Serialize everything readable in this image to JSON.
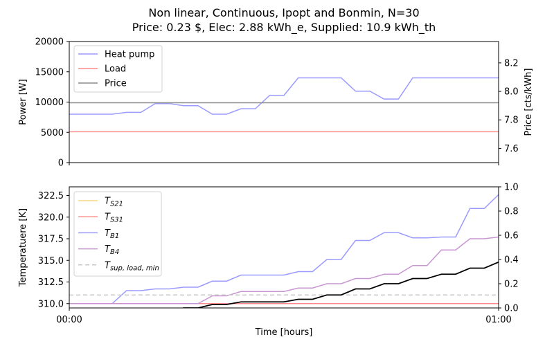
{
  "title_line1": "Non linear, Continuous, Ipopt and Bonmin, N=30",
  "title_line2": "Price: 0.23 $, Elec: 2.88 kWh_e, Supplied: 10.9 kWh_th",
  "colors": {
    "heat_pump": "#9a9aff",
    "load": "#ff8c8c",
    "price": "#8c8c8c",
    "t_s21": "#f5d78a",
    "t_s31": "#ff8c8c",
    "t_b1": "#9a9aff",
    "t_b4": "#c896d2",
    "t_sup_load_min": "#c8c8c8",
    "t_s21_line": "#ff8c3c",
    "extra_black": "#000000"
  },
  "chart_data": [
    {
      "type": "line",
      "ylabel": "Power [W]",
      "y2label": "Price [cts/kWh]",
      "xlabel": "",
      "x": [
        0,
        0.0333,
        0.0667,
        0.1,
        0.1333,
        0.1667,
        0.2,
        0.2333,
        0.2667,
        0.3,
        0.3333,
        0.3667,
        0.4,
        0.4333,
        0.4667,
        0.5,
        0.5333,
        0.5667,
        0.6,
        0.6333,
        0.6667,
        0.7,
        0.7333,
        0.7667,
        0.8,
        0.8333,
        0.8667,
        0.9,
        0.9333,
        0.9667,
        1.0
      ],
      "ylim": [
        0,
        20000
      ],
      "y2lim": [
        7.5,
        8.35
      ],
      "yticks": [
        0,
        5000,
        10000,
        15000,
        20000
      ],
      "y2ticks": [
        7.6,
        7.8,
        8.0,
        8.2
      ],
      "grid": false,
      "legend_position": "upper-left",
      "series": [
        {
          "name": "Heat pump",
          "axis": "left",
          "color_key": "heat_pump",
          "values": [
            8000,
            8000,
            8000,
            8000,
            8300,
            8300,
            9750,
            9750,
            9400,
            9400,
            8000,
            8000,
            8900,
            8900,
            11100,
            11100,
            14000,
            14000,
            14000,
            14000,
            11800,
            11800,
            10500,
            10500,
            14000,
            14000,
            14000,
            14000,
            14000,
            14000,
            14000
          ]
        },
        {
          "name": "Load",
          "axis": "left",
          "color_key": "load",
          "values": [
            5100,
            5100,
            5100,
            5100,
            5100,
            5100,
            5100,
            5100,
            5100,
            5100,
            5100,
            5100,
            5100,
            5100,
            5100,
            5100,
            5100,
            5100,
            5100,
            5100,
            5100,
            5100,
            5100,
            5100,
            5100,
            5100,
            5100,
            5100,
            5100,
            5100,
            5100
          ]
        },
        {
          "name": "Price",
          "axis": "right",
          "color_key": "price",
          "values": [
            7.92,
            7.92,
            7.92,
            7.92,
            7.92,
            7.92,
            7.92,
            7.92,
            7.92,
            7.92,
            7.92,
            7.92,
            7.92,
            7.92,
            7.92,
            7.92,
            7.92,
            7.92,
            7.92,
            7.92,
            7.92,
            7.92,
            7.92,
            7.92,
            7.92,
            7.92,
            7.92,
            7.92,
            7.92,
            7.92,
            7.92
          ]
        }
      ]
    },
    {
      "type": "line",
      "ylabel": "Temperatuere [K]",
      "xlabel": "Time [hours]",
      "x": [
        0,
        0.0333,
        0.0667,
        0.1,
        0.1333,
        0.1667,
        0.2,
        0.2333,
        0.2667,
        0.3,
        0.3333,
        0.3667,
        0.4,
        0.4333,
        0.4667,
        0.5,
        0.5333,
        0.5667,
        0.6,
        0.6333,
        0.6667,
        0.7,
        0.7333,
        0.7667,
        0.8,
        0.8333,
        0.8667,
        0.9,
        0.9333,
        0.9667,
        1.0
      ],
      "ylim": [
        309.5,
        323.5
      ],
      "y2lim": [
        0,
        1
      ],
      "yticks": [
        310.0,
        312.5,
        315.0,
        317.5,
        320.0,
        322.5
      ],
      "ytick_labels": [
        "310.0",
        "312.5",
        "315.0",
        "317.5",
        "320.0",
        "322.5"
      ],
      "y2ticks": [
        0.0,
        0.2,
        0.4,
        0.6,
        0.8,
        1.0
      ],
      "xticks": [
        0,
        1
      ],
      "xtick_labels": [
        "00:00",
        "01:00"
      ],
      "grid": false,
      "legend_position": "upper-left",
      "legend_labels": [
        {
          "base": "T",
          "sub": "S21"
        },
        {
          "base": "T",
          "sub": "S31"
        },
        {
          "base": "T",
          "sub": "B1"
        },
        {
          "base": "T",
          "sub": "B4"
        },
        {
          "base": "T",
          "sub": "sup, load, min"
        }
      ],
      "series": [
        {
          "name": "T_S21",
          "color_key": "t_s21_line",
          "legend_color_key": "t_s21",
          "values": [
            310.0,
            310.0,
            310.0,
            310.0,
            310.0,
            310.0,
            310.0,
            310.0,
            310.0,
            310.0,
            310.0,
            310.0,
            310.0,
            310.0,
            310.0,
            310.0,
            310.0,
            310.0,
            310.0,
            310.0,
            310.0,
            310.0,
            310.0,
            310.0,
            310.0,
            310.0,
            310.0,
            310.0,
            310.0,
            310.0,
            310.0
          ]
        },
        {
          "name": "T_S31",
          "color_key": "t_s31",
          "values": [
            310.0,
            310.0,
            310.0,
            310.0,
            310.0,
            310.0,
            310.0,
            310.0,
            310.0,
            310.0,
            310.0,
            310.0,
            310.0,
            310.0,
            310.0,
            310.0,
            310.0,
            310.0,
            310.0,
            310.0,
            310.0,
            310.0,
            310.0,
            310.0,
            310.0,
            310.0,
            310.0,
            310.0,
            310.0,
            310.0,
            310.0
          ]
        },
        {
          "name": "T_B1",
          "color_key": "t_b1",
          "values": [
            310.0,
            310.0,
            310.0,
            310.0,
            311.5,
            311.5,
            311.7,
            311.7,
            311.9,
            311.9,
            312.6,
            312.6,
            313.3,
            313.3,
            313.3,
            313.3,
            313.7,
            313.7,
            315.1,
            315.1,
            317.3,
            317.3,
            318.2,
            318.2,
            317.6,
            317.6,
            317.7,
            317.7,
            321.0,
            321.0,
            322.6
          ]
        },
        {
          "name": "T_B4",
          "color_key": "t_b4",
          "values": [
            310.0,
            310.0,
            310.0,
            310.0,
            310.0,
            310.0,
            310.0,
            310.0,
            310.0,
            310.0,
            310.9,
            310.9,
            311.4,
            311.4,
            311.4,
            311.4,
            311.8,
            311.8,
            312.3,
            312.3,
            312.9,
            312.9,
            313.4,
            313.4,
            314.4,
            314.4,
            316.2,
            316.2,
            317.5,
            317.5,
            317.7
          ]
        },
        {
          "name": "T_sup,load,min",
          "color_key": "t_sup_load_min",
          "dashed": true,
          "values": [
            311.0,
            311.0,
            311.0,
            311.0,
            311.0,
            311.0,
            311.0,
            311.0,
            311.0,
            311.0,
            311.0,
            311.0,
            311.0,
            311.0,
            311.0,
            311.0,
            311.0,
            311.0,
            311.0,
            311.0,
            311.0,
            311.0,
            311.0,
            311.0,
            311.0,
            311.0,
            311.0,
            311.0,
            311.0,
            311.0,
            311.0
          ]
        },
        {
          "name": "",
          "color_key": "extra_black",
          "values": [
            309.0,
            309.0,
            309.0,
            309.0,
            309.2,
            309.2,
            309.2,
            309.2,
            309.5,
            309.5,
            309.9,
            309.9,
            310.2,
            310.2,
            310.2,
            310.2,
            310.5,
            310.5,
            311.0,
            311.0,
            311.7,
            311.7,
            312.3,
            312.3,
            312.9,
            312.9,
            313.4,
            313.4,
            314.1,
            314.1,
            314.8
          ]
        }
      ]
    }
  ]
}
